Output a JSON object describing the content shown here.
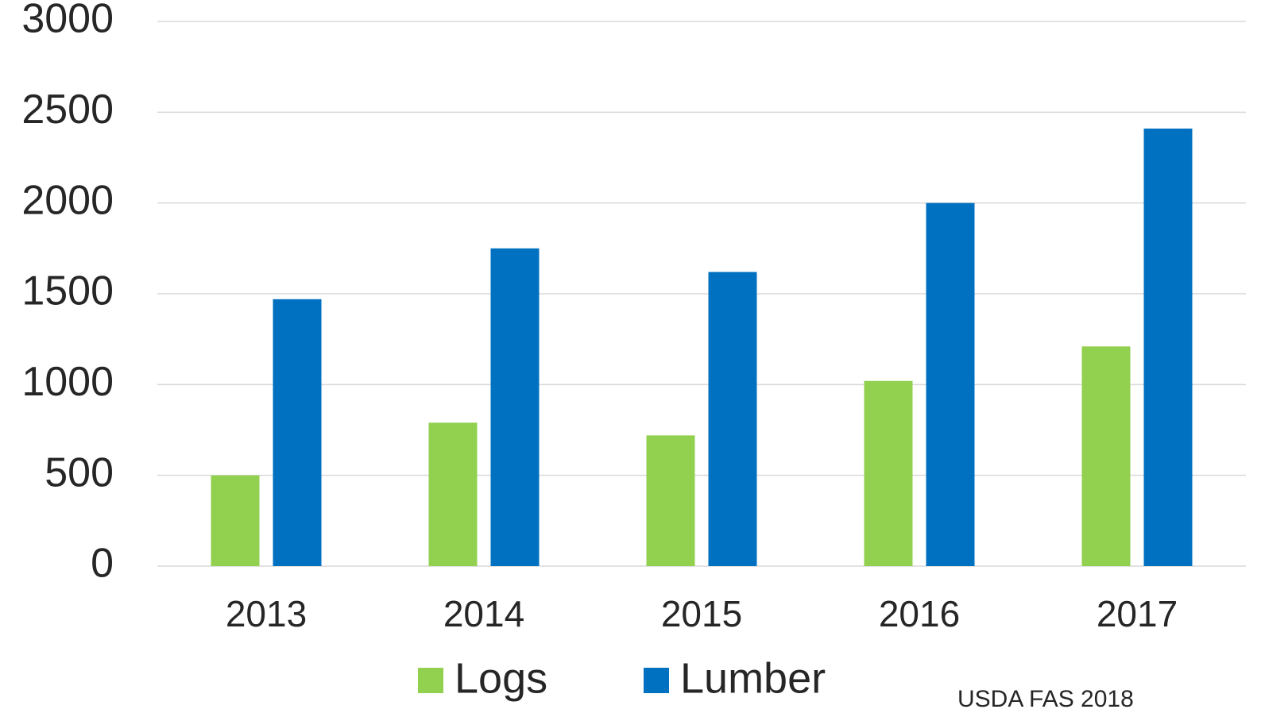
{
  "chart_data": {
    "type": "bar",
    "categories": [
      "2013",
      "2014",
      "2015",
      "2016",
      "2017"
    ],
    "series": [
      {
        "name": "Logs",
        "color": "#92d050",
        "values": [
          500,
          790,
          720,
          1020,
          1210
        ]
      },
      {
        "name": "Lumber",
        "color": "#0070c0",
        "values": [
          1470,
          1750,
          1620,
          2000,
          2410
        ]
      }
    ],
    "ylim": [
      0,
      3000
    ],
    "yticks": [
      0,
      500,
      1000,
      1500,
      2000,
      2500,
      3000
    ],
    "grid": true,
    "legend": "bottom",
    "annotation": "USDA FAS 2018"
  }
}
